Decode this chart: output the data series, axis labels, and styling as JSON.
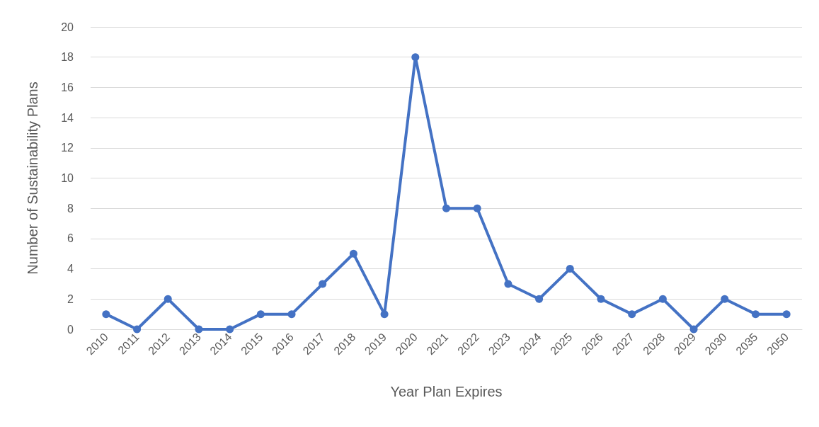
{
  "chart_data": {
    "type": "line",
    "xlabel": "Year Plan Expires",
    "ylabel": "Number of Sustainability Plans",
    "categories": [
      "2010",
      "2011",
      "2012",
      "2013",
      "2014",
      "2015",
      "2016",
      "2017",
      "2018",
      "2019",
      "2020",
      "2021",
      "2022",
      "2023",
      "2024",
      "2025",
      "2026",
      "2027",
      "2028",
      "2029",
      "2030",
      "2035",
      "2050"
    ],
    "series": [
      {
        "color": "#4472c4",
        "values": [
          1,
          0,
          2,
          0,
          0,
          1,
          1,
          3,
          5,
          1,
          18,
          8,
          8,
          3,
          2,
          4,
          2,
          1,
          2,
          0,
          2,
          1,
          1
        ]
      }
    ],
    "ylim": [
      0,
      20
    ],
    "yticks": [
      0,
      2,
      4,
      6,
      8,
      10,
      12,
      14,
      16,
      18,
      20
    ],
    "grid": "y",
    "marker": "circle",
    "line_style": "solid"
  }
}
